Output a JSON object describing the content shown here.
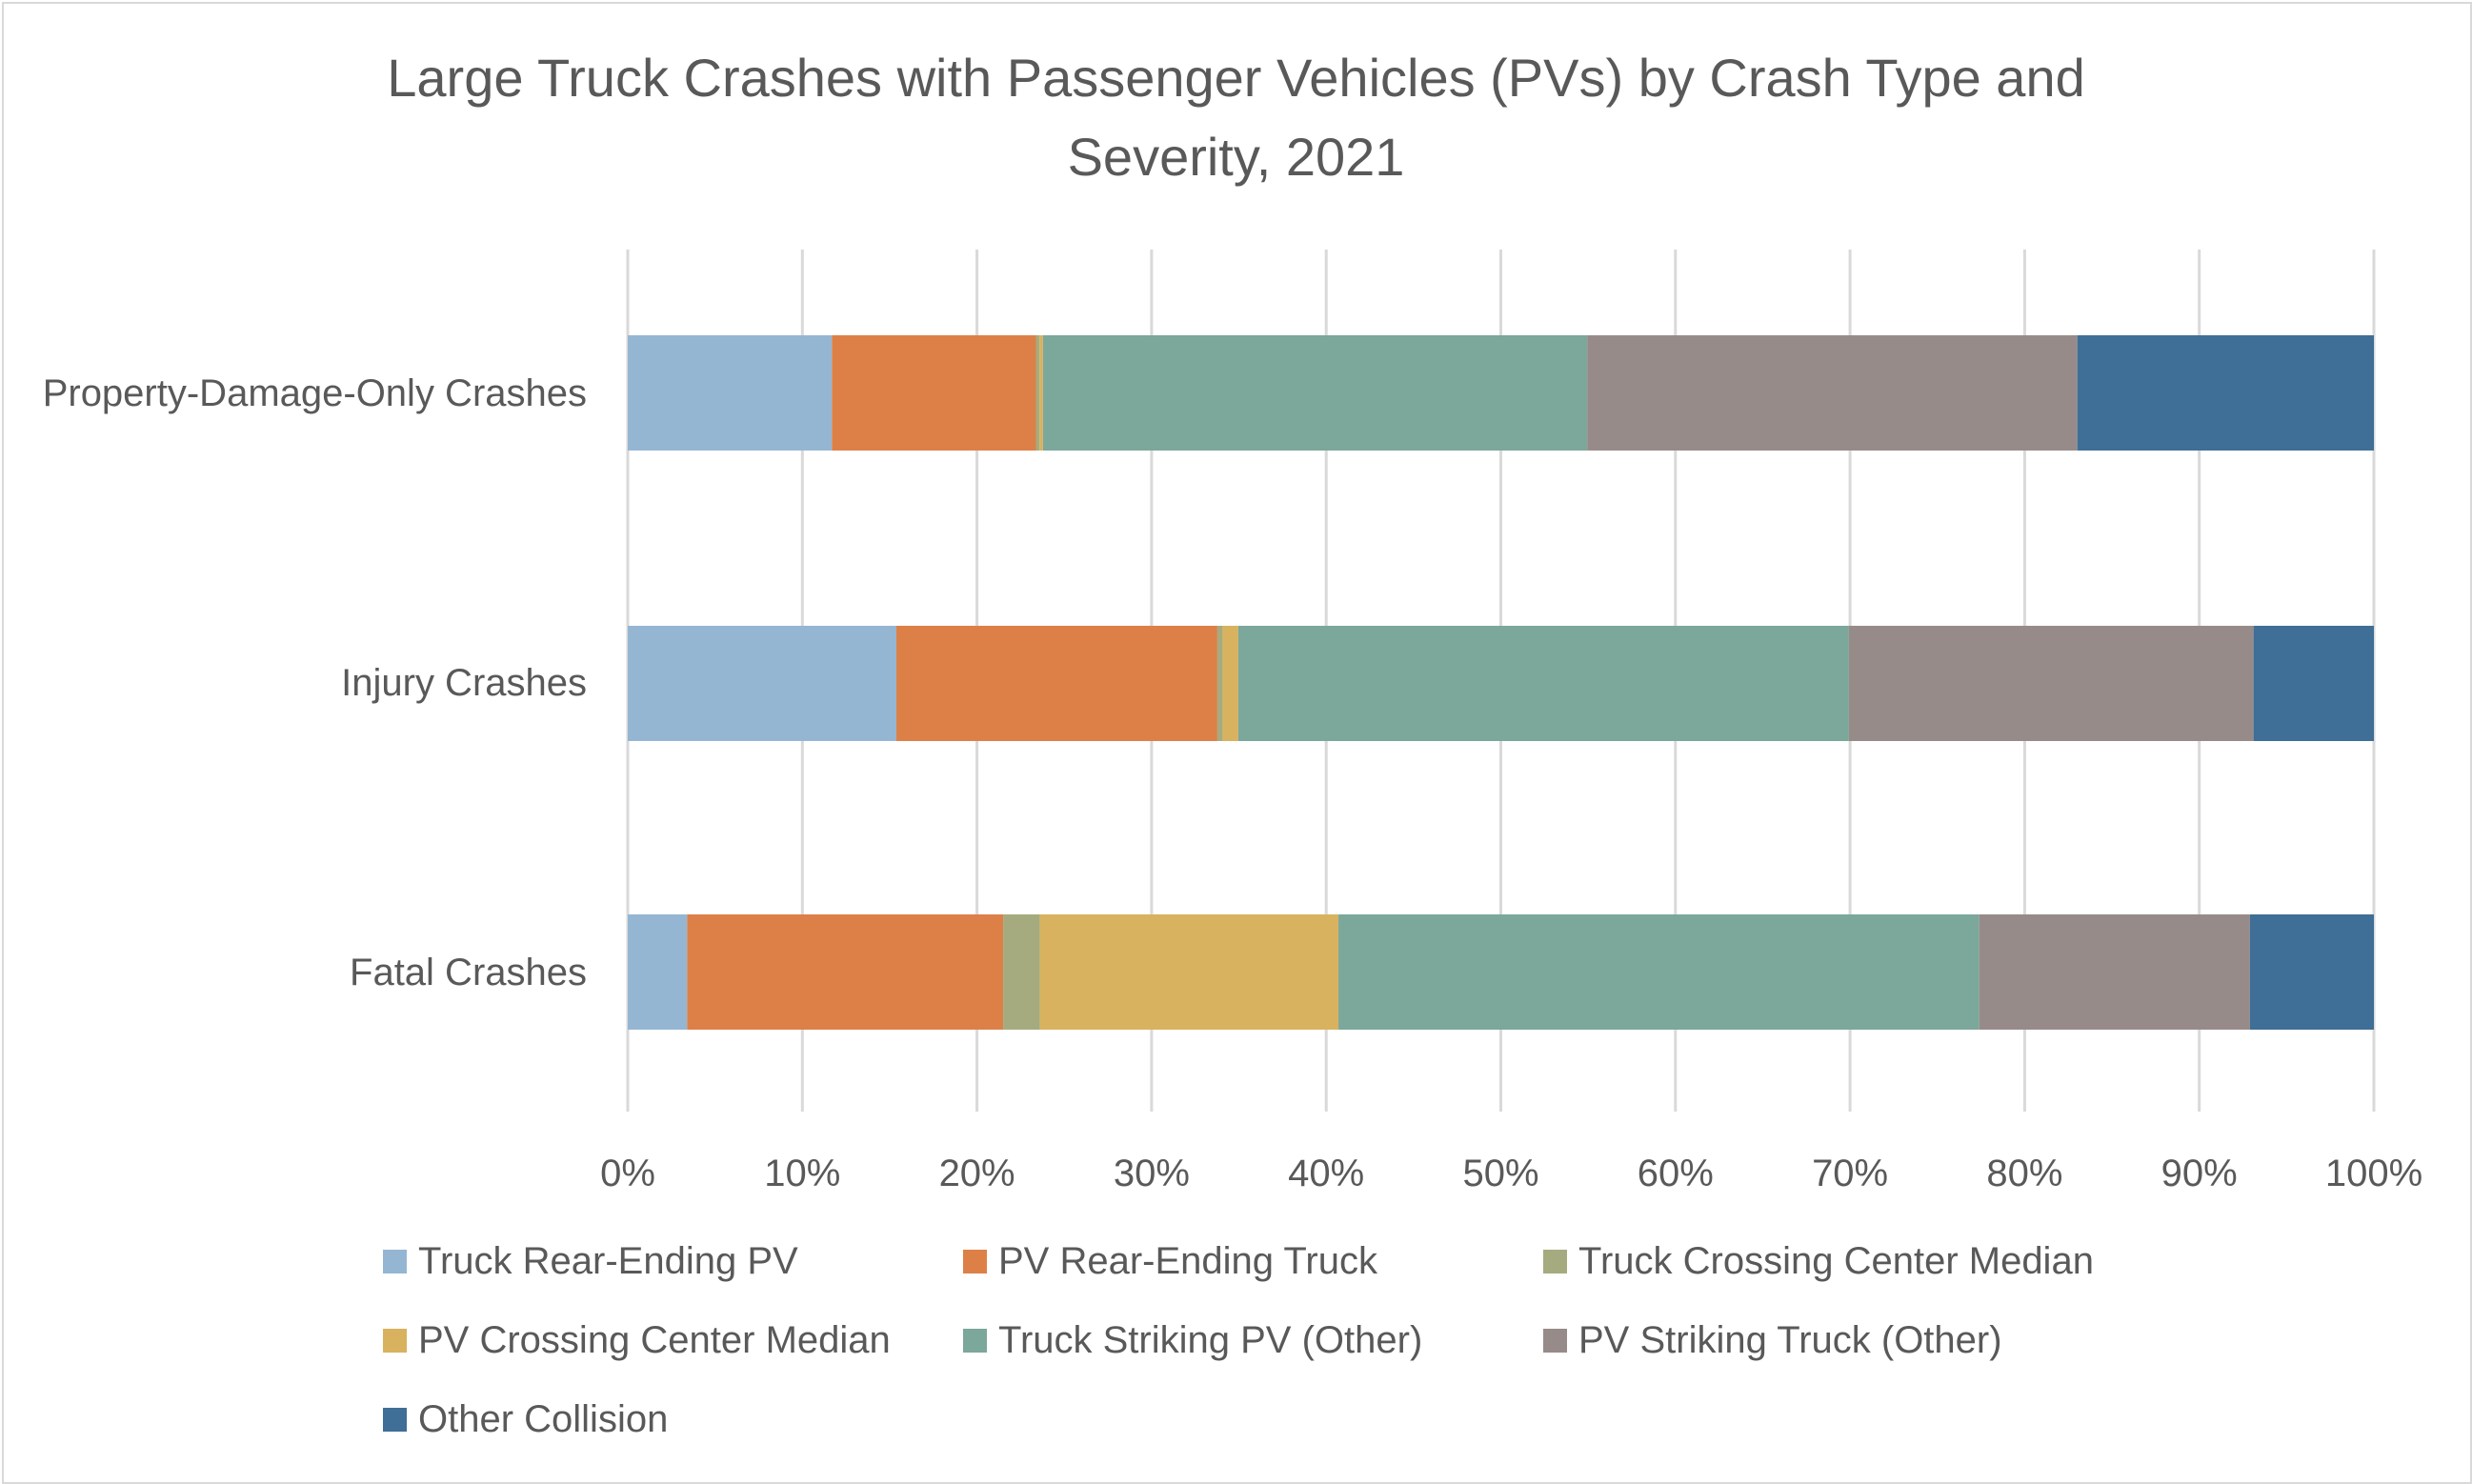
{
  "chart_data": {
    "type": "bar",
    "orientation": "horizontal",
    "stacked": "percent",
    "title_lines": [
      "Large Truck Crashes with Passenger Vehicles (PVs) by Crash Type and",
      "Severity, 2021"
    ],
    "categories": [
      "Property-Damage-Only Crashes",
      "Injury Crashes",
      "Fatal Crashes"
    ],
    "series": [
      {
        "name": "Truck Rear-Ending PV",
        "color": "#95b6d3",
        "values": [
          11.7,
          15.4,
          3.4
        ]
      },
      {
        "name": "PV Rear-Ending Truck",
        "color": "#dd8048",
        "values": [
          11.7,
          18.4,
          18.1
        ]
      },
      {
        "name": "Truck Crossing Center Median",
        "color": "#a5ab7f",
        "values": [
          0.2,
          0.3,
          2.1
        ]
      },
      {
        "name": "PV Crossing Center Median",
        "color": "#d8b25e",
        "values": [
          0.2,
          0.9,
          17.1
        ]
      },
      {
        "name": "Truck Striking PV (Other)",
        "color": "#7ca79b",
        "values": [
          31.2,
          35.0,
          36.7
        ]
      },
      {
        "name": "PV Striking Truck (Other)",
        "color": "#978b89",
        "values": [
          28.1,
          23.2,
          15.5
        ]
      },
      {
        "name": "Other Collision",
        "color": "#3f6e96",
        "values": [
          17.0,
          6.9,
          7.1
        ]
      }
    ],
    "xticks": [
      "0%",
      "10%",
      "20%",
      "30%",
      "40%",
      "50%",
      "60%",
      "70%",
      "80%",
      "90%",
      "100%"
    ],
    "xlim": [
      0,
      100
    ],
    "grid": "vertical",
    "legend_position": "bottom"
  }
}
